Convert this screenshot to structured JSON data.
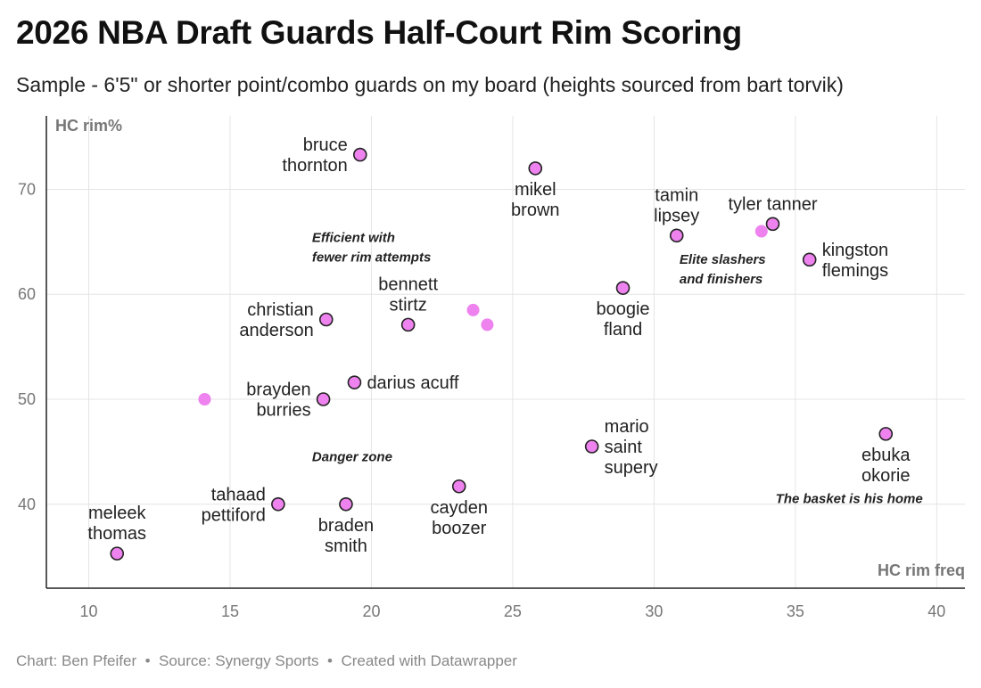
{
  "title": "2026 NBA Draft Guards Half-Court Rim Scoring",
  "subtitle": "Sample - 6'5\" or shorter point/combo guards on my board (heights sourced from bart torvik)",
  "footer": {
    "chart_by": "Chart: Ben Pfeifer",
    "source": "Source: Synergy Sports",
    "tool": "Created with Datawrapper",
    "separator": "•"
  },
  "colors": {
    "point_fill": "#ee82ee",
    "point_stroke": "#222222",
    "grid": "#e4e4e4",
    "axis": "#222222"
  },
  "chart_data": {
    "type": "scatter",
    "xlabel": "HC rim freq",
    "ylabel": "HC rim%",
    "xlim": [
      8.5,
      41
    ],
    "ylim": [
      32,
      77
    ],
    "xticks": [
      10,
      15,
      20,
      25,
      30,
      35,
      40
    ],
    "yticks": [
      40,
      50,
      60,
      70
    ],
    "grid": true,
    "points": [
      {
        "name": "bruce thornton",
        "lines": [
          "bruce",
          "thornton"
        ],
        "x": 19.6,
        "y": 73.3,
        "label_pos": "left",
        "outlined": true
      },
      {
        "name": "mikel brown",
        "lines": [
          "mikel",
          "brown"
        ],
        "x": 25.8,
        "y": 72.0,
        "label_pos": "below",
        "outlined": true
      },
      {
        "name": "tamin lipsey",
        "lines": [
          "tamin",
          "lipsey"
        ],
        "x": 30.8,
        "y": 65.6,
        "label_pos": "above",
        "outlined": true
      },
      {
        "name": "tyler tanner",
        "lines": [
          "tyler tanner"
        ],
        "x": 34.2,
        "y": 66.7,
        "label_pos": "above",
        "outlined": true
      },
      {
        "name": "",
        "lines": [],
        "x": 33.8,
        "y": 66.0,
        "label_pos": "none",
        "outlined": false
      },
      {
        "name": "kingston flemings",
        "lines": [
          "kingston",
          "flemings"
        ],
        "x": 35.5,
        "y": 63.3,
        "label_pos": "right",
        "outlined": true
      },
      {
        "name": "boogie fland",
        "lines": [
          "boogie",
          "fland"
        ],
        "x": 28.9,
        "y": 60.6,
        "label_pos": "below",
        "outlined": true
      },
      {
        "name": "bennett stirtz",
        "lines": [
          "bennett",
          "stirtz"
        ],
        "x": 21.3,
        "y": 57.1,
        "label_pos": "above",
        "outlined": true
      },
      {
        "name": "",
        "lines": [],
        "x": 23.6,
        "y": 58.5,
        "label_pos": "none",
        "outlined": false
      },
      {
        "name": "",
        "lines": [],
        "x": 24.1,
        "y": 57.1,
        "label_pos": "none",
        "outlined": false
      },
      {
        "name": "christian anderson",
        "lines": [
          "christian",
          "anderson"
        ],
        "x": 18.4,
        "y": 57.6,
        "label_pos": "left",
        "outlined": true
      },
      {
        "name": "darius acuff",
        "lines": [
          "darius acuff"
        ],
        "x": 19.4,
        "y": 51.6,
        "label_pos": "right",
        "outlined": true
      },
      {
        "name": "brayden burries",
        "lines": [
          "brayden",
          "burries"
        ],
        "x": 18.3,
        "y": 50.0,
        "label_pos": "left",
        "outlined": true
      },
      {
        "name": "",
        "lines": [],
        "x": 14.1,
        "y": 50.0,
        "label_pos": "none",
        "outlined": false
      },
      {
        "name": "mario saint supery",
        "lines": [
          "mario",
          "saint",
          "supery"
        ],
        "x": 27.8,
        "y": 45.5,
        "label_pos": "right",
        "outlined": true
      },
      {
        "name": "ebuka okorie",
        "lines": [
          "ebuka",
          "okorie"
        ],
        "x": 38.2,
        "y": 46.7,
        "label_pos": "below",
        "outlined": true
      },
      {
        "name": "cayden boozer",
        "lines": [
          "cayden",
          "boozer"
        ],
        "x": 23.1,
        "y": 41.7,
        "label_pos": "below",
        "outlined": true
      },
      {
        "name": "tahaad pettiford",
        "lines": [
          "tahaad",
          "pettiford"
        ],
        "x": 16.7,
        "y": 40.0,
        "label_pos": "left",
        "outlined": true
      },
      {
        "name": "braden smith",
        "lines": [
          "braden",
          "smith"
        ],
        "x": 19.1,
        "y": 40.0,
        "label_pos": "below",
        "outlined": true
      },
      {
        "name": "meleek thomas",
        "lines": [
          "meleek",
          "thomas"
        ],
        "x": 11.0,
        "y": 35.3,
        "label_pos": "above",
        "outlined": true
      }
    ],
    "annotations": [
      {
        "name": "efficient-fewer-attempts",
        "lines": [
          "Efficient with",
          "fewer rim attempts"
        ],
        "x": 17.9,
        "y": 65.0,
        "align": "start"
      },
      {
        "name": "elite-slashers",
        "lines": [
          "Elite slashers",
          "and finishers"
        ],
        "x": 30.9,
        "y": 62.9,
        "align": "start"
      },
      {
        "name": "danger-zone",
        "lines": [
          "Danger zone"
        ],
        "x": 17.9,
        "y": 44.1,
        "align": "start"
      },
      {
        "name": "basket-is-home",
        "lines": [
          "The basket is his home"
        ],
        "x": 34.3,
        "y": 40.1,
        "align": "start"
      }
    ]
  }
}
